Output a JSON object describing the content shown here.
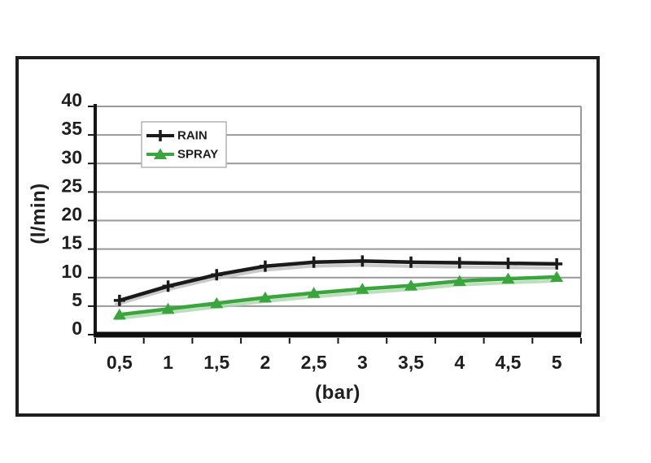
{
  "chart_data": {
    "type": "line",
    "categories": [
      "0,5",
      "1",
      "1,5",
      "2",
      "2,5",
      "3",
      "3,5",
      "4",
      "4,5",
      "5"
    ],
    "x_numeric": [
      0.5,
      1,
      1.5,
      2,
      2.5,
      3,
      3.5,
      4,
      4.5,
      5
    ],
    "series": [
      {
        "name": "RAIN",
        "color": "#1a1a1a",
        "marker": "plus",
        "values": [
          6,
          8.5,
          10.5,
          12,
          12.7,
          12.9,
          12.7,
          12.6,
          12.5,
          12.4
        ]
      },
      {
        "name": "SPRAY",
        "color": "#3aa43d",
        "marker": "triangle",
        "values": [
          3.5,
          4.5,
          5.5,
          6.5,
          7.3,
          8,
          8.6,
          9.4,
          9.8,
          10.1
        ]
      }
    ],
    "xlabel": "(bar)",
    "ylabel": "(l/min)",
    "ylim": [
      0,
      40
    ],
    "ytick_step": 5,
    "yticks": [
      0,
      5,
      10,
      15,
      20,
      25,
      30,
      35,
      40
    ],
    "grid": "horizontal",
    "gridline_color": "#999999",
    "axis_color": "#161616",
    "legend_position": "top-left",
    "legend_labels": [
      "RAIN",
      "SPRAY"
    ]
  },
  "frame": {
    "border_color": "#1e1e1e",
    "background": "#ffffff"
  }
}
